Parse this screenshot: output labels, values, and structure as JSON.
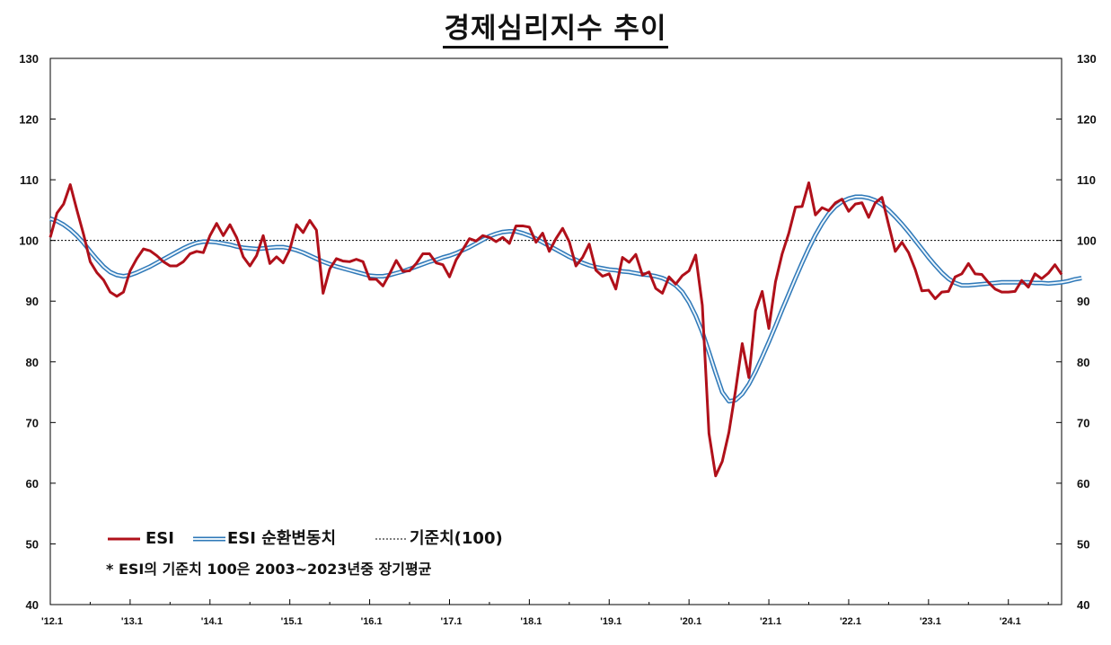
{
  "title": "경제심리지수  추이",
  "legend": {
    "esi": "ESI",
    "cycle": "ESI 순환변동치",
    "baseline": "기준치(100)"
  },
  "note": "* ESI의 기준치 100은 2003~2023년중 장기평균",
  "colors": {
    "esi": "#b0101a",
    "cycle_outer": "#2e78b8",
    "cycle_inner": "#eaf4fb",
    "baseline": "#000000"
  },
  "chart_data": {
    "type": "line",
    "x_tick_labels": [
      "'12.1",
      "'13.1",
      "'14.1",
      "'15.1",
      "'16.1",
      "'17.1",
      "'18.1",
      "'19.1",
      "'20.1",
      "'21.1",
      "'22.1",
      "'23.1",
      "'24.1"
    ],
    "x_start": "2012-01",
    "x_end": "2024-09",
    "ylim": [
      40,
      130
    ],
    "y_ticks": [
      40,
      50,
      60,
      70,
      80,
      90,
      100,
      110,
      120,
      130
    ],
    "baseline": 100,
    "series": [
      {
        "name": "ESI",
        "values": [
          100.5,
          104.5,
          106,
          109.2,
          105,
          101,
          96.5,
          94.7,
          93.5,
          91.5,
          90.8,
          91.5,
          95,
          97,
          98.6,
          98.3,
          97.5,
          96.5,
          95.8,
          95.8,
          96.5,
          97.8,
          98.2,
          98,
          100.8,
          102.8,
          100.8,
          102.6,
          100.5,
          97.3,
          95.8,
          97.5,
          100.8,
          96.2,
          97.3,
          96.3,
          98.5,
          102.6,
          101.3,
          103.3,
          101.7,
          91.3,
          95.3,
          97,
          96.6,
          96.5,
          96.9,
          96.5,
          93.6,
          93.6,
          92.5,
          94.5,
          96.7,
          94.9,
          95,
          96.2,
          97.8,
          97.8,
          96.3,
          96,
          94,
          96.8,
          98.5,
          100.3,
          99.9,
          100.8,
          100.5,
          99.8,
          100.5,
          99.5,
          102.4,
          102.4,
          102.2,
          99.7,
          101.2,
          98.2,
          100.3,
          102,
          99.8,
          95.8,
          97.2,
          99.4,
          95.1,
          94.1,
          94.5,
          92,
          97.2,
          96.4,
          97.7,
          94.3,
          94.8,
          92.1,
          91.3,
          94,
          92.8,
          94.2,
          95,
          97.6,
          89.3,
          68.2,
          61.2,
          63.6,
          68.4,
          75.3,
          83,
          77.4,
          88.4,
          91.6,
          85.5,
          93.2,
          97.8,
          101.2,
          105.5,
          105.6,
          109.5,
          104.2,
          105.4,
          104.9,
          106.2,
          106.8,
          104.8,
          106,
          106.2,
          103.8,
          106.2,
          107.1,
          102.6,
          98.2,
          99.7,
          98,
          95.2,
          91.7,
          91.8,
          90.4,
          91.5,
          91.6,
          94,
          94.5,
          96.2,
          94.5,
          94.4,
          93.1,
          92,
          91.5,
          91.5,
          91.6,
          93.4,
          92.3,
          94.5,
          93.7,
          94.6,
          96,
          94.4
        ]
      },
      {
        "name": "ESI 순환변동치",
        "values": [
          103.6,
          103.2,
          102.6,
          101.8,
          100.8,
          99.6,
          98.2,
          96.9,
          95.7,
          94.8,
          94.3,
          94.1,
          94.3,
          94.7,
          95.2,
          95.7,
          96.3,
          96.9,
          97.5,
          98.1,
          98.7,
          99.2,
          99.6,
          99.8,
          99.8,
          99.7,
          99.5,
          99.3,
          99,
          98.8,
          98.7,
          98.6,
          98.7,
          98.8,
          98.9,
          98.9,
          98.7,
          98.4,
          98,
          97.5,
          97,
          96.5,
          96.1,
          95.7,
          95.4,
          95.1,
          94.8,
          94.5,
          94.2,
          94.1,
          94.1,
          94.3,
          94.6,
          94.9,
          95.3,
          95.7,
          96.1,
          96.5,
          96.8,
          97.2,
          97.5,
          97.9,
          98.4,
          98.9,
          99.5,
          100.1,
          100.7,
          101.1,
          101.4,
          101.5,
          101.5,
          101.2,
          100.8,
          100.3,
          99.7,
          99.1,
          98.5,
          97.9,
          97.3,
          96.8,
          96.3,
          95.9,
          95.6,
          95.4,
          95.2,
          95.1,
          94.9,
          94.8,
          94.6,
          94.4,
          94.3,
          94.1,
          93.8,
          93.3,
          92.6,
          91.5,
          89.8,
          87.6,
          84.9,
          81.6,
          78.2,
          75,
          73.5,
          73.7,
          74.7,
          76.3,
          78.4,
          80.8,
          83.3,
          85.9,
          88.6,
          91.2,
          93.8,
          96.3,
          98.7,
          100.9,
          102.8,
          104.4,
          105.6,
          106.4,
          106.9,
          107.2,
          107.2,
          107,
          106.6,
          105.9,
          105,
          103.9,
          102.7,
          101.4,
          100,
          98.6,
          97.2,
          95.9,
          94.7,
          93.7,
          93,
          92.6,
          92.6,
          92.7,
          92.8,
          92.9,
          93,
          93.1,
          93.1,
          93.1,
          93.1,
          93.1,
          93,
          93,
          92.9,
          93,
          93.1,
          93.3,
          93.6,
          93.8
        ]
      }
    ]
  }
}
